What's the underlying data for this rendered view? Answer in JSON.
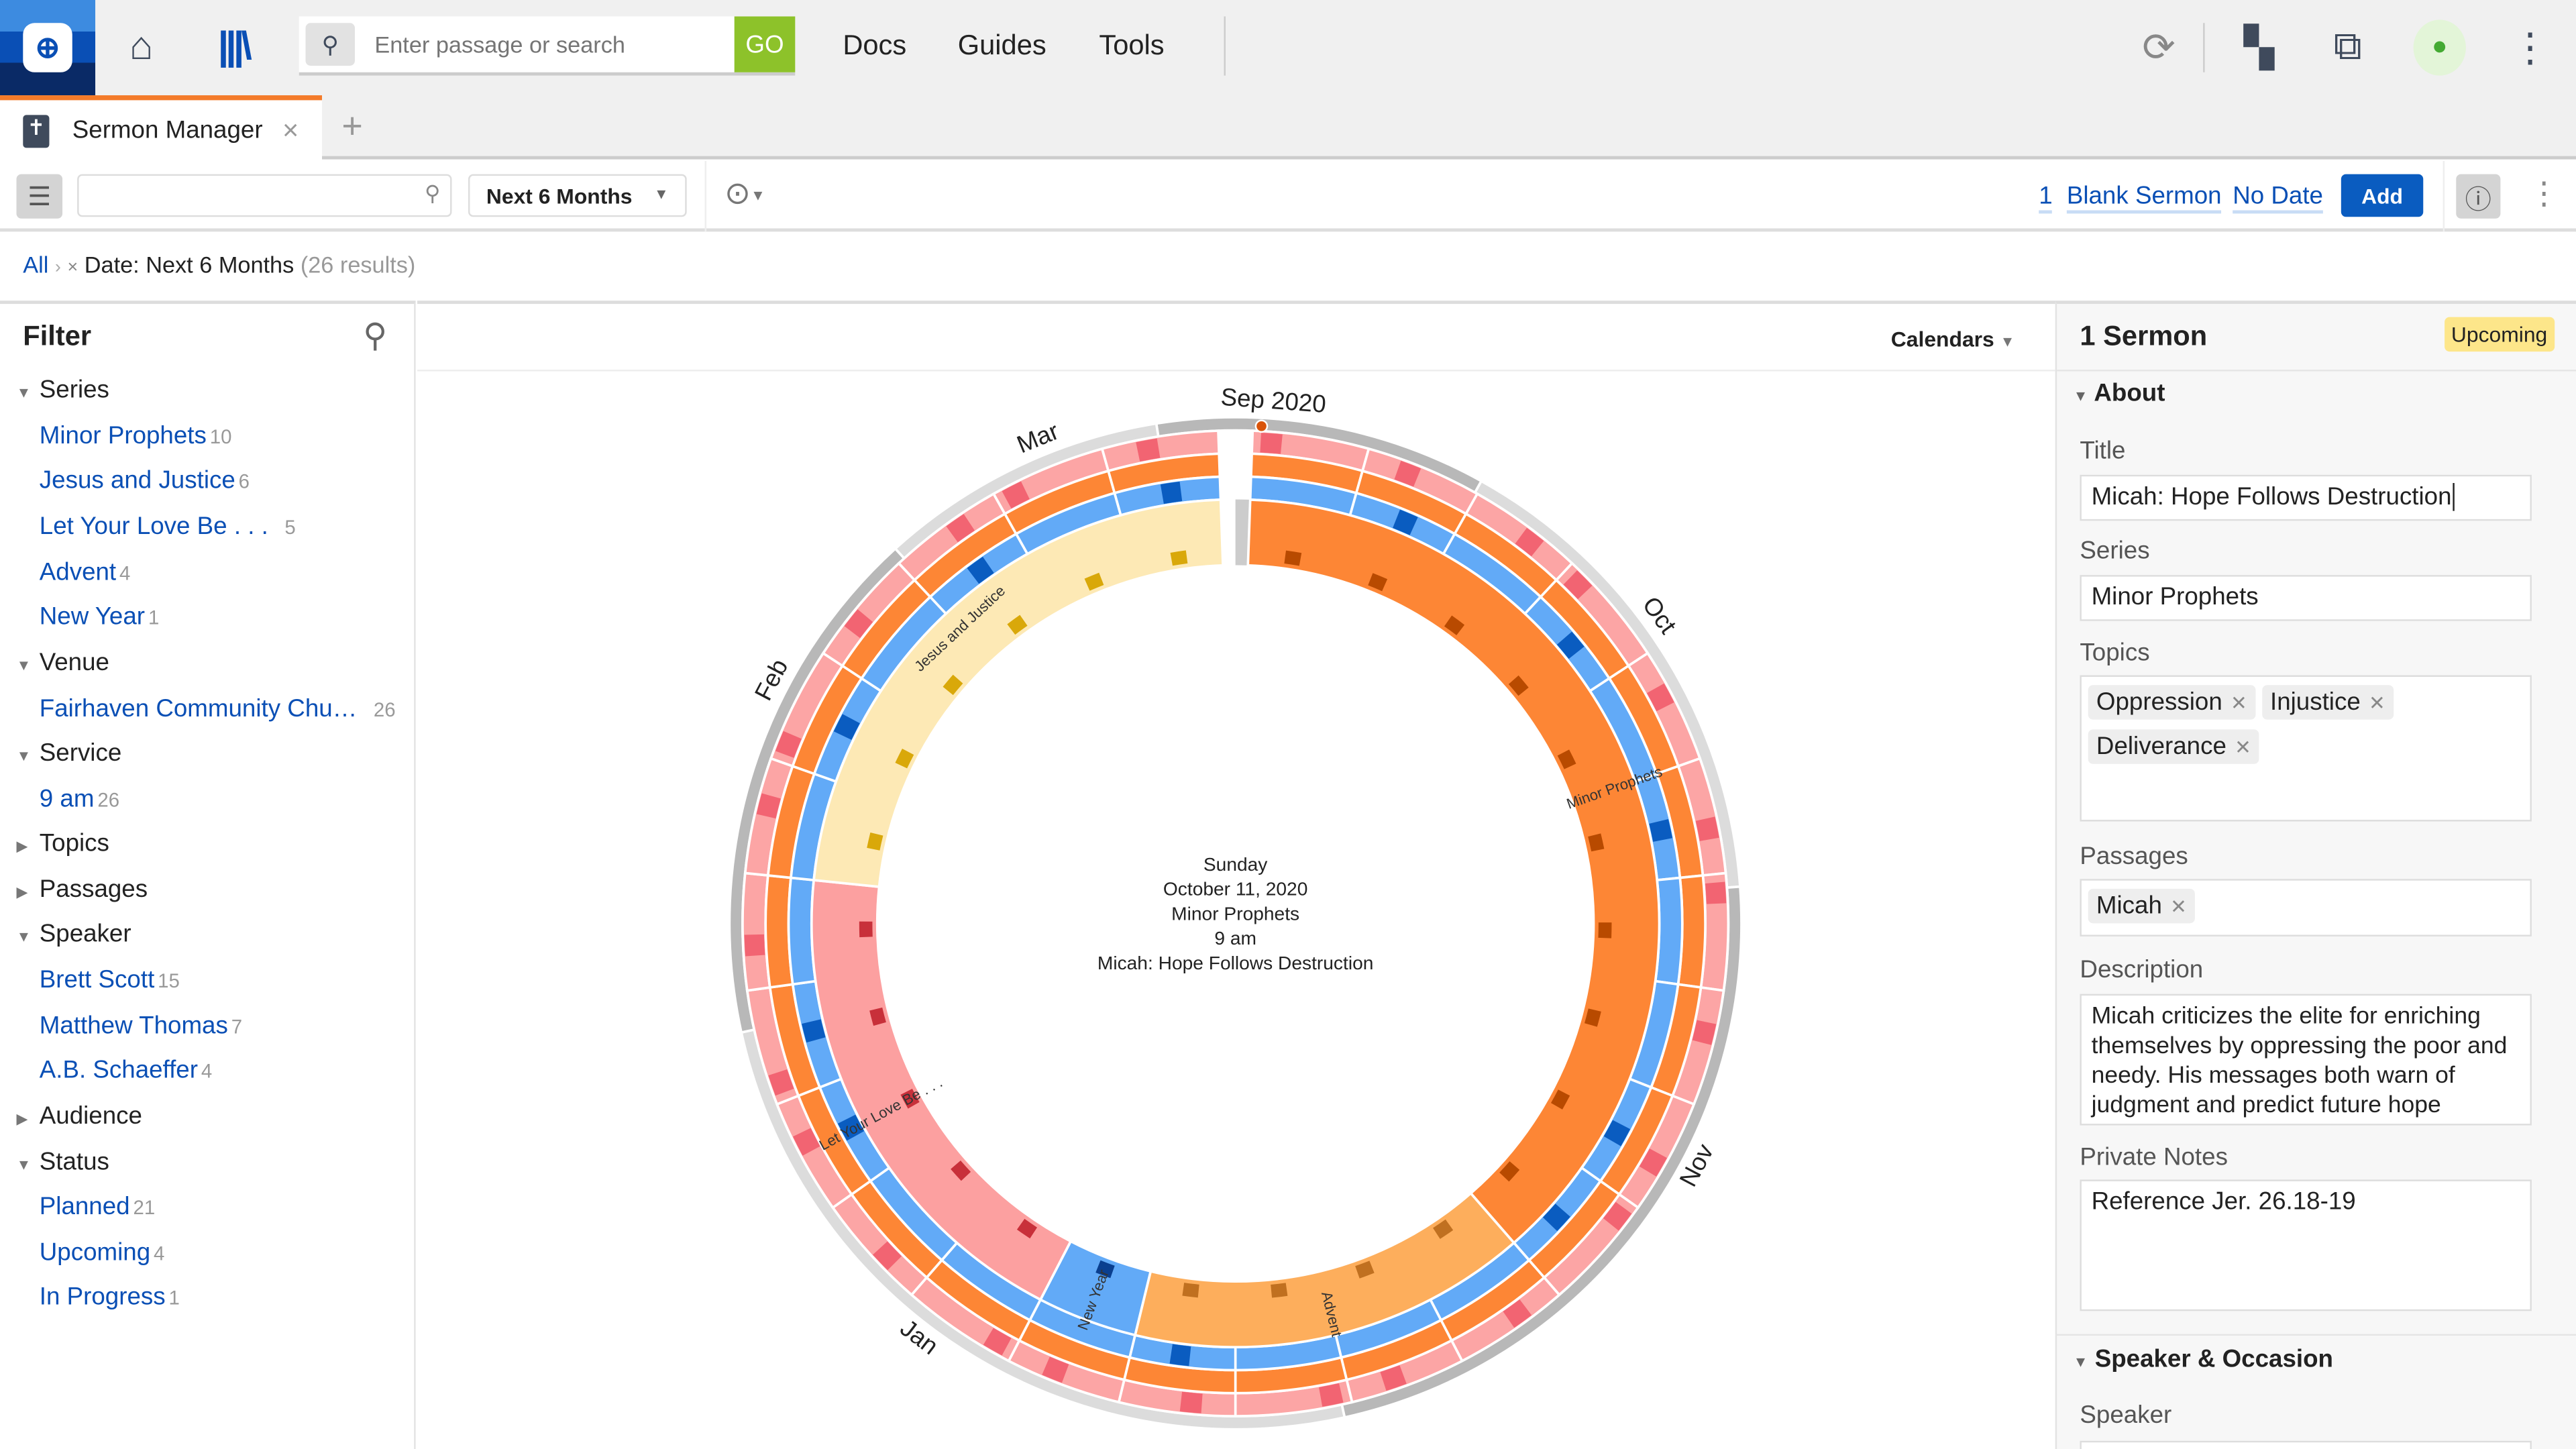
{
  "topbar": {
    "search_placeholder": "Enter passage or search",
    "go": "GO",
    "nav": [
      "Docs",
      "Guides",
      "Tools"
    ]
  },
  "tab": {
    "label": "Sermon Manager",
    "close": "×",
    "add": "+"
  },
  "toolbar": {
    "date_filter": "Next 6 Months",
    "count": "1",
    "blank_sermon": "Blank Sermon",
    "no_date": "No Date",
    "add": "Add"
  },
  "breadcrumb": {
    "all": "All",
    "sep": "›",
    "remove": "×",
    "filter": "Date: Next 6 Months",
    "results": "(26 results)"
  },
  "filter": {
    "title": "Filter",
    "groups": [
      {
        "label": "Series",
        "open": true,
        "items": [
          {
            "label": "Minor Prophets",
            "count": "10"
          },
          {
            "label": "Jesus and Justice",
            "count": "6"
          },
          {
            "label": "Let Your Love Be . . .",
            "count": "5"
          },
          {
            "label": "Advent",
            "count": "4"
          },
          {
            "label": "New Year",
            "count": "1"
          }
        ]
      },
      {
        "label": "Venue",
        "open": true,
        "items": [
          {
            "label": "Fairhaven Community Chu…",
            "count": "26"
          }
        ]
      },
      {
        "label": "Service",
        "open": true,
        "items": [
          {
            "label": "9 am",
            "count": "26"
          }
        ]
      },
      {
        "label": "Topics",
        "open": false,
        "items": []
      },
      {
        "label": "Passages",
        "open": false,
        "items": []
      },
      {
        "label": "Speaker",
        "open": true,
        "items": [
          {
            "label": "Brett Scott",
            "count": "15"
          },
          {
            "label": "Matthew Thomas",
            "count": "7"
          },
          {
            "label": "A.B. Schaeffer",
            "count": "4"
          }
        ]
      },
      {
        "label": "Audience",
        "open": false,
        "items": []
      },
      {
        "label": "Status",
        "open": true,
        "items": [
          {
            "label": "Planned",
            "count": "21"
          },
          {
            "label": "Upcoming",
            "count": "4"
          },
          {
            "label": "In Progress",
            "count": "1"
          }
        ]
      }
    ]
  },
  "calendar": {
    "dropdown": "Calendars",
    "center": [
      "Sunday",
      "October 11, 2020",
      "Minor Prophets",
      "9 am",
      "Micah: Hope Follows Destruction"
    ],
    "total_weeks": 26,
    "months": [
      {
        "label": "Sep 2020",
        "week": 0.3
      },
      {
        "label": "Oct",
        "week": 3.9
      },
      {
        "label": "Nov",
        "week": 8.5
      },
      {
        "label": "Jan",
        "week": 15.7
      },
      {
        "label": "Feb",
        "week": 21.5
      },
      {
        "label": "Mar",
        "week": 24.4
      }
    ],
    "series": [
      {
        "label": "Minor Prophets",
        "weeks": 10,
        "color": "#fd8635",
        "mark": "#b84a00"
      },
      {
        "label": "Advent",
        "weeks": 4,
        "color": "#fdae5c",
        "mark": "#c07020"
      },
      {
        "label": "New Year",
        "weeks": 1,
        "color": "#62aaf7",
        "mark": "#0a3f8f"
      },
      {
        "label": "Let Your Love Be . . .",
        "weeks": 5,
        "color": "#fca0a0",
        "mark": "#c8303a"
      },
      {
        "label": "Jesus and Justice",
        "weeks": 6,
        "color": "#fde9b5",
        "mark": "#d9a80a"
      }
    ],
    "colors": {
      "pink": "#fca5a5",
      "pink_mark": "#f26472",
      "orange": "#fd8635",
      "blue": "#62aaf7",
      "blue_mark": "#0a5cc0",
      "grey_dark": "#b8b8b8",
      "grey_light": "#dcdcdc"
    }
  },
  "detail": {
    "title": "1 Sermon",
    "badge": "Upcoming",
    "about": "About",
    "title_label": "Title",
    "title_value": "Micah: Hope Follows Destruction",
    "series_label": "Series",
    "series_value": "Minor Prophets",
    "topics_label": "Topics",
    "topics": [
      "Oppression",
      "Injustice",
      "Deliverance"
    ],
    "passages_label": "Passages",
    "passages": [
      "Micah"
    ],
    "description_label": "Description",
    "description": "Micah criticizes the elite for enriching themselves by oppressing the poor and needy. His messages both warn of judgment and predict future hope",
    "notes_label": "Private Notes",
    "notes": "Reference Jer. 26.18-19",
    "speaker_section": "Speaker & Occasion",
    "speaker_label": "Speaker"
  }
}
